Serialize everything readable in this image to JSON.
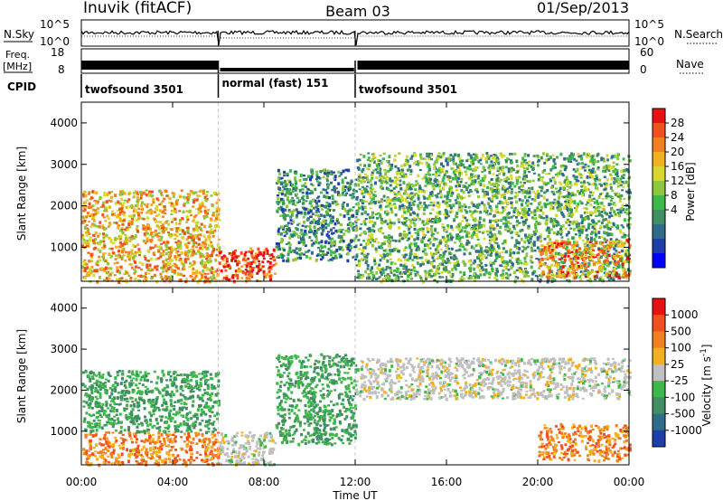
{
  "header": {
    "station": "Inuvik (fitACF)",
    "beam": "Beam 03",
    "date": "01/Sep/2013"
  },
  "status_panels": {
    "nsky_label": "N.Sky",
    "nsky_ticks": [
      "10^5",
      "10^0"
    ],
    "nsearch_label": "N.Search",
    "nsearch_ticks": [
      "10^5",
      "10^0"
    ],
    "freq_label_1": "Freq.",
    "freq_label_2": "[MHz]",
    "freq_ticks": [
      "18",
      "8"
    ],
    "nave_label": "Nave",
    "nave_ticks": [
      "60",
      "0"
    ],
    "cpid_label": "CPID",
    "cpid_segments": [
      {
        "label": "twofsound 3501",
        "start": 0,
        "end": 6
      },
      {
        "label": "normal (fast) 151",
        "start": 6,
        "end": 12
      },
      {
        "label": "twofsound 3501",
        "start": 12,
        "end": 24
      }
    ]
  },
  "time_axis": {
    "title": "Time UT",
    "ticks": [
      "00:00",
      "04:00",
      "08:00",
      "12:00",
      "16:00",
      "20:00",
      "00:00"
    ]
  },
  "chart_data": [
    {
      "type": "heatmap",
      "panel": "power",
      "xlabel": "Time UT",
      "ylabel": "Slant Range [km]",
      "xlim": [
        0,
        24
      ],
      "ylim": [
        180,
        4500
      ],
      "yticks": [
        "1000",
        "2000",
        "3000",
        "4000"
      ],
      "colorbar": {
        "label": "Power [dB]",
        "ticks": [
          "28",
          "24",
          "20",
          "16",
          "12",
          "8",
          "4"
        ],
        "colors": [
          "#0000ff",
          "#1f3fa8",
          "#2e6c8a",
          "#3f8f62",
          "#3fb84a",
          "#8ec83a",
          "#d8d830",
          "#f0b020",
          "#f08020",
          "#f05020",
          "#e81010"
        ]
      },
      "features": [
        {
          "start": 0,
          "end": 6,
          "range_min": 200,
          "range_max": 2400,
          "power_db": 22
        },
        {
          "start": 6,
          "end": 8.5,
          "range_min": 200,
          "range_max": 1000,
          "power_db": 30
        },
        {
          "start": 8.5,
          "end": 12,
          "range_min": 700,
          "range_max": 2900,
          "power_db": 10
        },
        {
          "start": 12,
          "end": 24,
          "range_min": 200,
          "range_max": 3300,
          "power_db": 14
        },
        {
          "start": 20,
          "end": 24,
          "range_min": 300,
          "range_max": 1200,
          "power_db": 24
        }
      ]
    },
    {
      "type": "heatmap",
      "panel": "velocity",
      "xlabel": "Time UT",
      "ylabel": "Slant Range [km]",
      "xlim": [
        0,
        24
      ],
      "ylim": [
        180,
        4500
      ],
      "yticks": [
        "1000",
        "2000",
        "3000",
        "4000"
      ],
      "colorbar": {
        "label": "Velocity [m s^-1]",
        "ticks": [
          "1000",
          "500",
          "100",
          "25",
          "-25",
          "-100",
          "-500",
          "-1000"
        ],
        "colors": [
          "#1f3fa8",
          "#2e6c8a",
          "#3f8f62",
          "#3fb84a",
          "#c0c0c0",
          "#f0b020",
          "#f08020",
          "#f05020",
          "#e81010"
        ]
      },
      "features": [
        {
          "start": 0,
          "end": 6,
          "range_min": 200,
          "range_max": 1000,
          "velocity": -200
        },
        {
          "start": 0,
          "end": 6,
          "range_min": 1000,
          "range_max": 2500,
          "velocity": 150
        },
        {
          "start": 6,
          "end": 8.5,
          "range_min": 200,
          "range_max": 1000,
          "velocity": 0
        },
        {
          "start": 8.5,
          "end": 12,
          "range_min": 700,
          "range_max": 2900,
          "velocity": 200
        },
        {
          "start": 12,
          "end": 24,
          "range_min": 1800,
          "range_max": 2800,
          "velocity": 0
        },
        {
          "start": 20,
          "end": 24,
          "range_min": 300,
          "range_max": 1200,
          "velocity": -300
        }
      ]
    }
  ]
}
